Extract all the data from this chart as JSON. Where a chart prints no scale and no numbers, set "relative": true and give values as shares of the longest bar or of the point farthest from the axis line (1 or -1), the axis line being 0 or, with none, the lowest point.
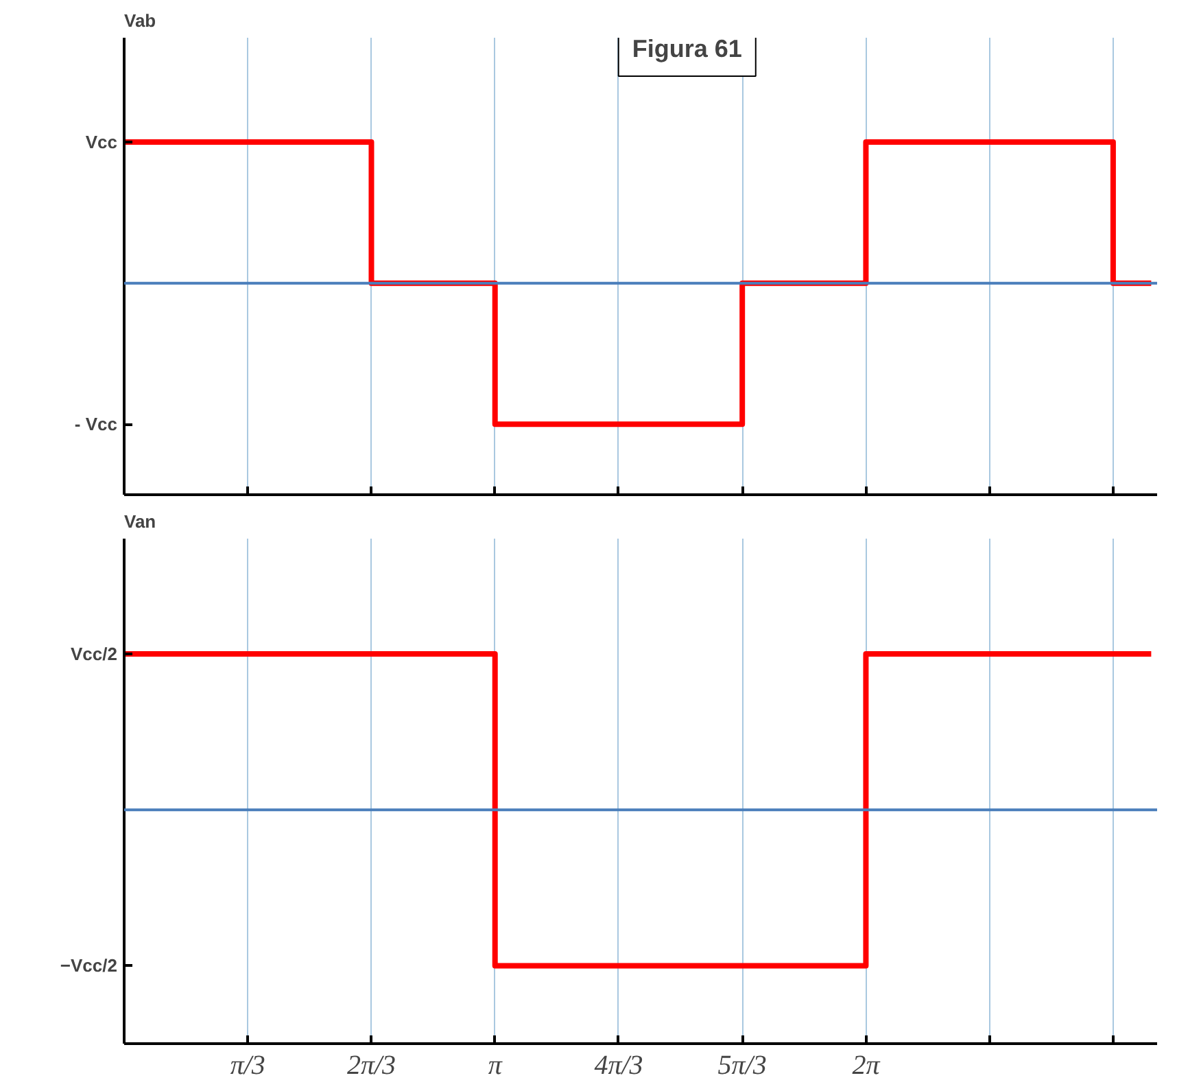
{
  "chart_data": [
    {
      "type": "step",
      "title": "Vab",
      "relative": true,
      "annotations": [
        "Figura 61",
        "Vcc",
        "- Vcc"
      ],
      "x": [
        0,
        2.0944,
        3.1416,
        5.236,
        6.2832,
        8.3776,
        8.7
      ],
      "series": [
        {
          "color": "#ff0000",
          "values": [
            1,
            0,
            -1,
            0,
            1,
            0,
            0
          ]
        }
      ],
      "xlim": [
        0,
        8.75
      ],
      "xticks": [
        {
          "value": 0,
          "label": null
        },
        {
          "value": 1.0472,
          "label": null
        },
        {
          "value": 2.0944,
          "label": null
        },
        {
          "value": 3.1416,
          "label": null
        },
        {
          "value": 4.1888,
          "label": null
        },
        {
          "value": 5.236,
          "label": null
        },
        {
          "value": 6.2832,
          "label": null
        },
        {
          "value": 7.3304,
          "label": null
        },
        {
          "value": 8.3776,
          "label": null
        }
      ],
      "ref_lines": [
        {
          "axis": "y",
          "value": 0,
          "color": "#4a7ebb"
        }
      ],
      "grid": "x",
      "tick_labels": false
    },
    {
      "type": "step",
      "title": "Van",
      "relative": true,
      "annotations": [
        "Vcc/2",
        "−Vcc/2"
      ],
      "x": [
        0,
        3.1416,
        6.2832,
        8.7
      ],
      "series": [
        {
          "color": "#ff0000",
          "values": [
            1,
            -1,
            1,
            1
          ]
        }
      ],
      "xlim": [
        0,
        8.75
      ],
      "xticks": [
        {
          "value": 0,
          "label": null
        },
        {
          "value": 1.0472,
          "label": "π/3"
        },
        {
          "value": 2.0944,
          "label": "2π/3"
        },
        {
          "value": 3.1416,
          "label": "π"
        },
        {
          "value": 4.1888,
          "label": "4π/3"
        },
        {
          "value": 5.236,
          "label": "5π/3"
        },
        {
          "value": 6.2832,
          "label": "2π"
        },
        {
          "value": 7.3304,
          "label": null
        },
        {
          "value": 8.3776,
          "label": null
        }
      ],
      "ref_lines": [
        {
          "axis": "y",
          "value": 0,
          "color": "#4a7ebb"
        }
      ],
      "grid": "x",
      "tick_labels": "x"
    }
  ]
}
